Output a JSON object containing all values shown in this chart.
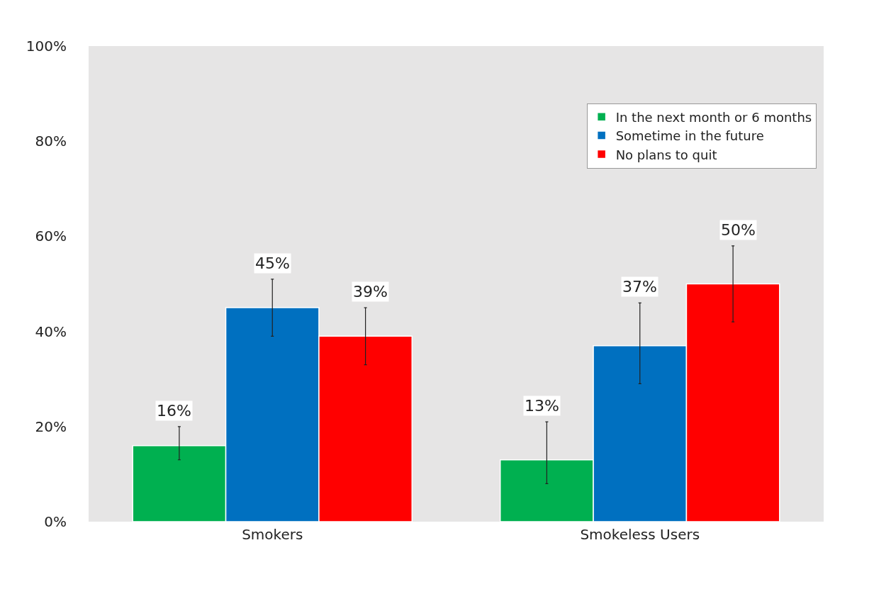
{
  "chart_data": {
    "type": "bar",
    "categories": [
      "Smokers",
      "Smokeless Users"
    ],
    "series": [
      {
        "name": "In the next month or 6 months",
        "color": "#00b050",
        "values": [
          16,
          13
        ],
        "errors": [
          [
            13,
            20
          ],
          [
            8,
            21
          ]
        ]
      },
      {
        "name": "Sometime in the future",
        "color": "#0070c0",
        "values": [
          45,
          37
        ],
        "errors": [
          [
            39,
            51
          ],
          [
            29,
            46
          ]
        ]
      },
      {
        "name": "No plans to quit",
        "color": "#ff0000",
        "values": [
          39,
          50
        ],
        "errors": [
          [
            33,
            45
          ],
          [
            42,
            58
          ]
        ]
      }
    ],
    "ylim": [
      0,
      100
    ],
    "yticks": [
      {
        "value": 0,
        "label": "0%"
      },
      {
        "value": 20,
        "label": "20%"
      },
      {
        "value": 40,
        "label": "40%"
      },
      {
        "value": 60,
        "label": "60%"
      },
      {
        "value": 80,
        "label": "80%"
      },
      {
        "value": 100,
        "label": "100%"
      }
    ],
    "value_labels": [
      [
        "16%",
        "13%"
      ],
      [
        "45%",
        "37%"
      ],
      [
        "39%",
        "50%"
      ]
    ],
    "grid": false,
    "legend": "top right"
  }
}
